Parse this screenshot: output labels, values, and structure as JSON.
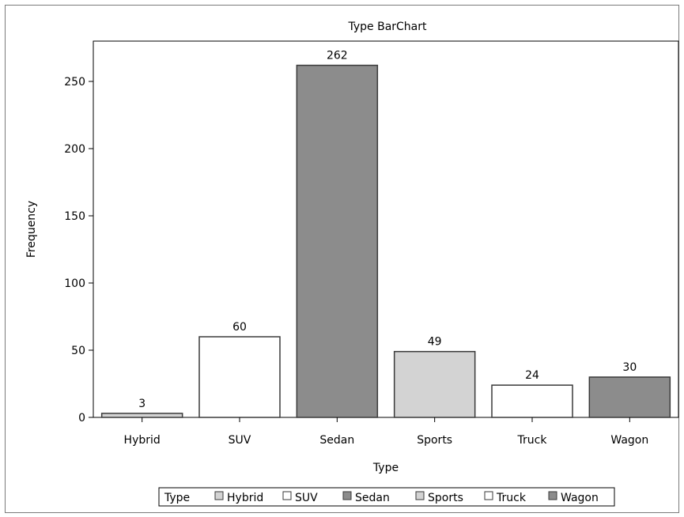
{
  "chart_data": {
    "type": "bar",
    "title": "Type BarChart",
    "xlabel": "Type",
    "ylabel": "Frequency",
    "categories": [
      "Hybrid",
      "SUV",
      "Sedan",
      "Sports",
      "Truck",
      "Wagon"
    ],
    "values": [
      3,
      60,
      262,
      49,
      24,
      30
    ],
    "bar_colors": [
      "#d3d3d3",
      "#ffffff",
      "#8c8c8c",
      "#d3d3d3",
      "#ffffff",
      "#8c8c8c"
    ],
    "ylim": [
      0,
      280
    ],
    "yticks": [
      0,
      50,
      100,
      150,
      200,
      250
    ],
    "grid": false,
    "legend": {
      "title": "Type",
      "placement": "bottom",
      "entries": [
        "Hybrid",
        "SUV",
        "Sedan",
        "Sports",
        "Truck",
        "Wagon"
      ]
    }
  }
}
